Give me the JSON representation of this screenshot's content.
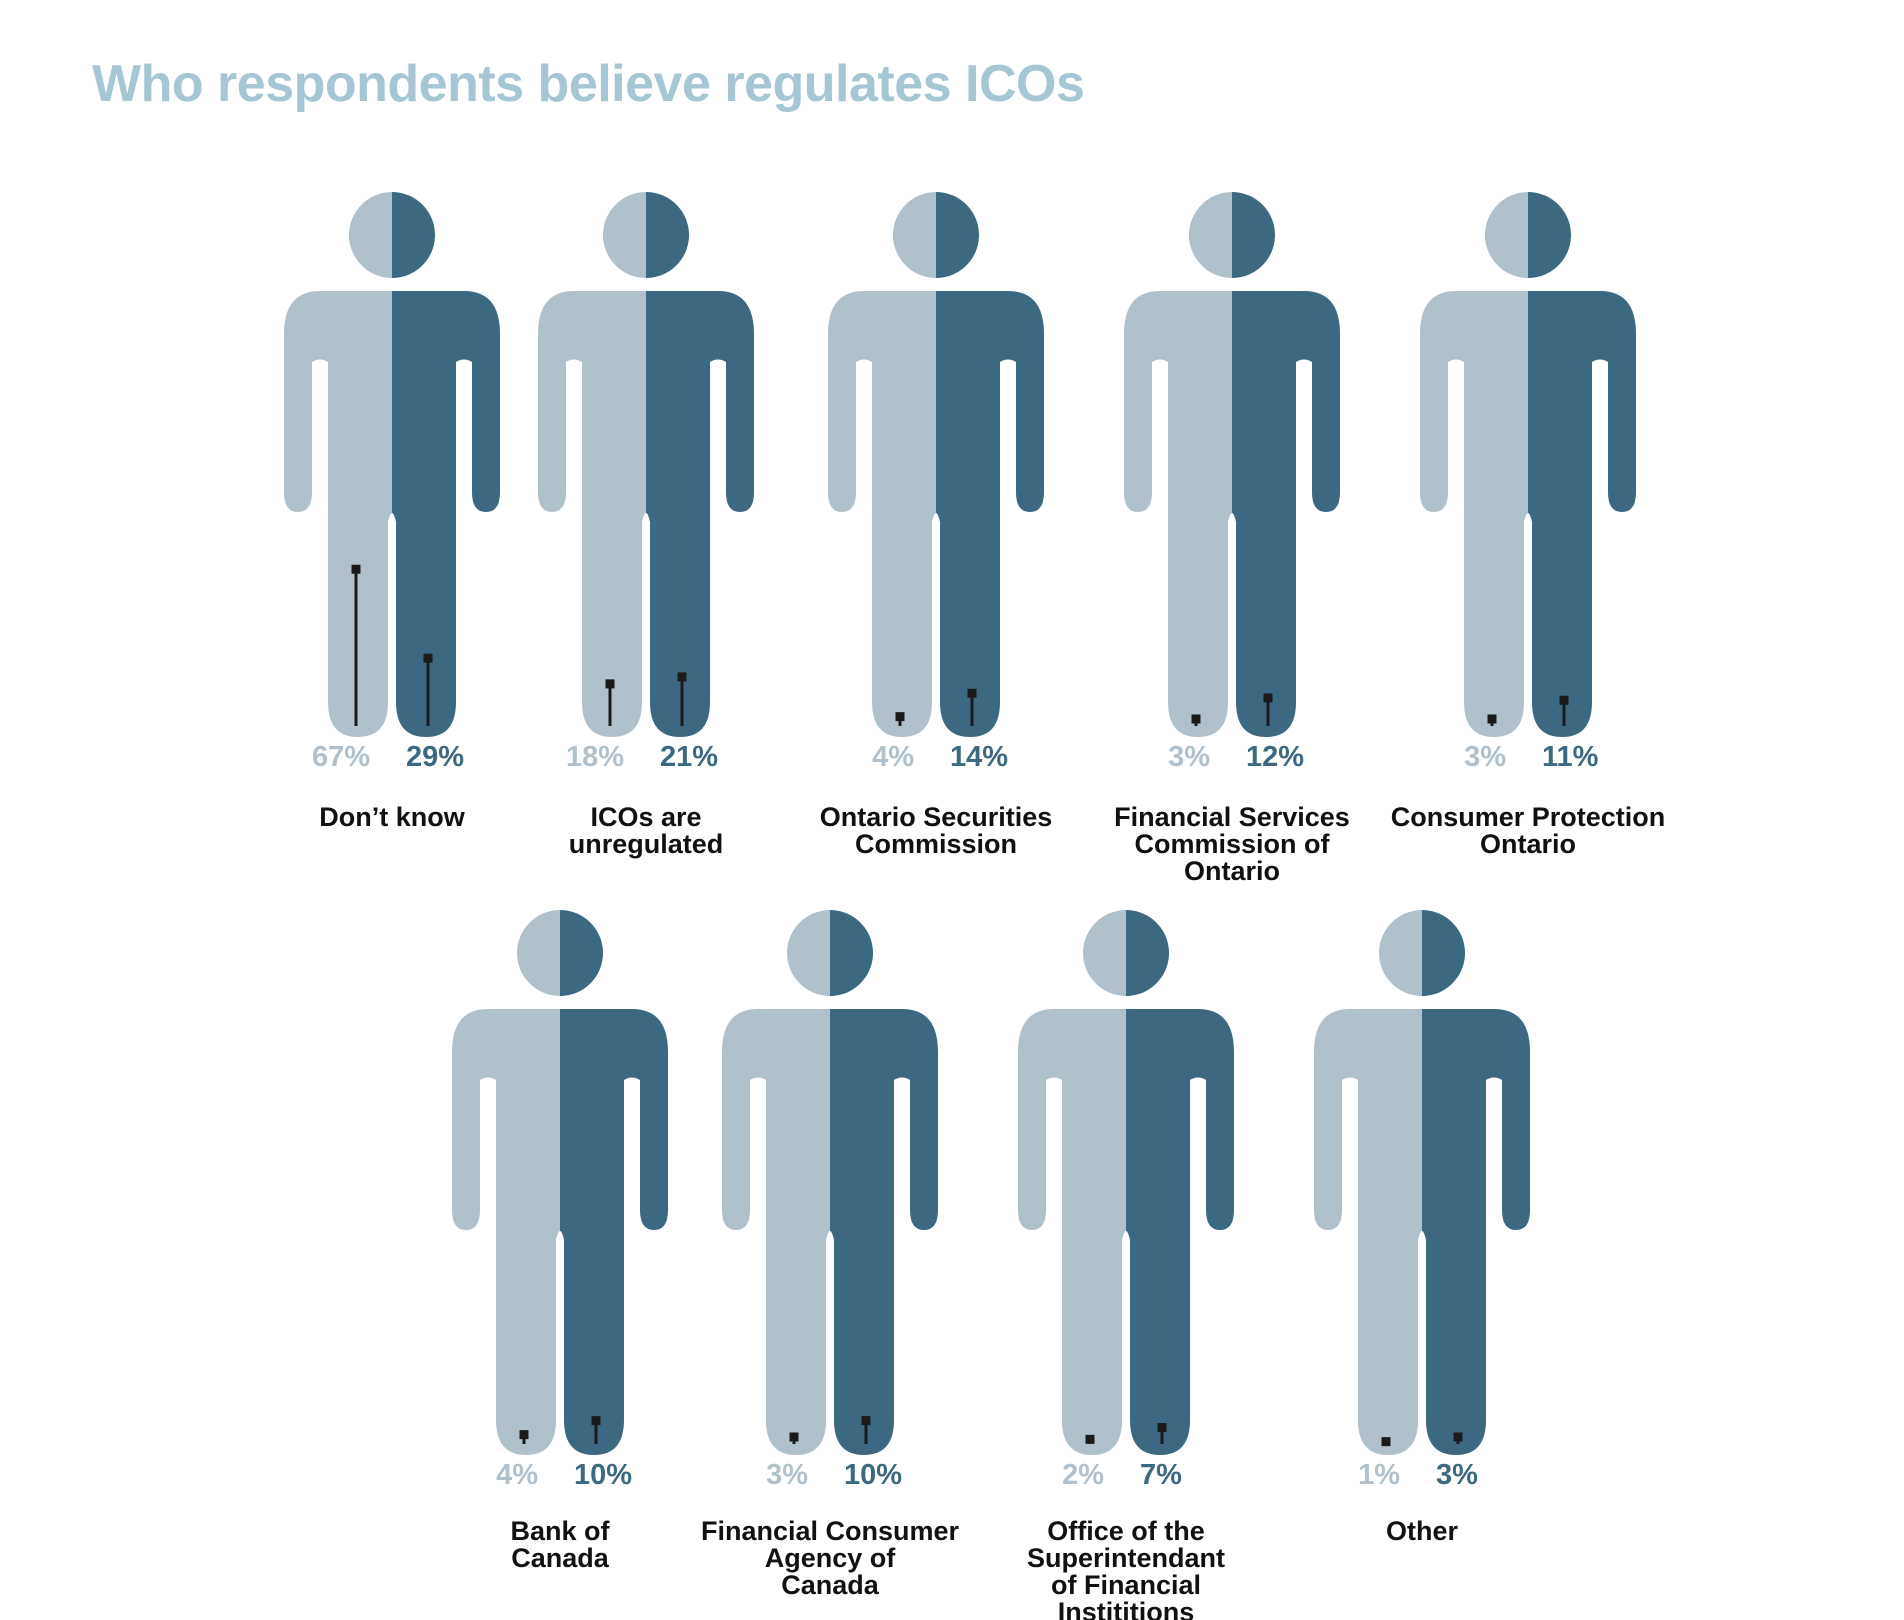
{
  "chart_data": {
    "type": "bar",
    "title": "Who respondents believe regulates ICOs",
    "categories": [
      [
        "Don’t know"
      ],
      [
        "ICOs are",
        "unregulated"
      ],
      [
        "Ontario Securities",
        "Commission"
      ],
      [
        "Financial Services",
        "Commission of",
        "Ontario"
      ],
      [
        "Consumer Protection",
        "Ontario"
      ],
      [
        "Bank of",
        "Canada"
      ],
      [
        "Financial Consumer",
        "Agency of",
        "Canada"
      ],
      [
        "Office of the",
        "Superintendant",
        "of Financial",
        "Instititions"
      ],
      [
        "Other"
      ]
    ],
    "series": [
      {
        "values": [
          67,
          18,
          4,
          3,
          3,
          4,
          3,
          2,
          1
        ],
        "color": "#b1c1cc",
        "value_labels": [
          "67%",
          "18%",
          "4%",
          "3%",
          "3%",
          "4%",
          "3%",
          "2%",
          "1%"
        ]
      },
      {
        "values": [
          29,
          21,
          14,
          12,
          11,
          10,
          10,
          7,
          3
        ],
        "color": "#3c6881",
        "value_labels": [
          "29%",
          "21%",
          "14%",
          "12%",
          "11%",
          "10%",
          "10%",
          "7%",
          "3%"
        ]
      }
    ],
    "ylim": [
      0,
      100
    ],
    "grid": false,
    "legend": "none",
    "colors": {
      "title": "#a6c6d3",
      "text": "#111111",
      "marker": "#1a1a1a"
    }
  }
}
